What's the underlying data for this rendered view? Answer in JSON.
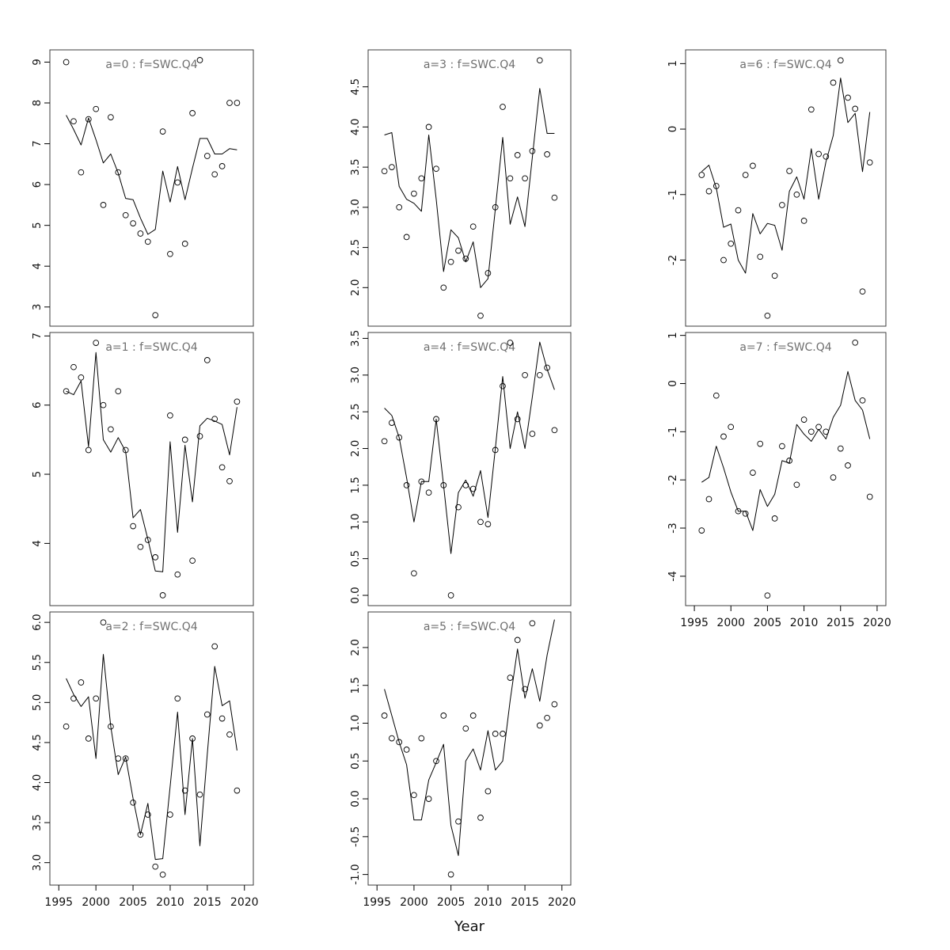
{
  "figure": {
    "xlabel": "Year",
    "background": "#ffffff",
    "line_color": "#000000",
    "point_color": "#000000",
    "title_color": "#6f6f6f",
    "tick_label_color": "#111111",
    "border_color": "#3d3d3d",
    "x_domain": [
      1993.8,
      2021.2
    ],
    "x_ticks": [
      "1995",
      "2000",
      "2005",
      "2010",
      "2015",
      "2020"
    ],
    "years": [
      1996,
      1997,
      1998,
      1999,
      2000,
      2001,
      2002,
      2003,
      2004,
      2005,
      2006,
      2007,
      2008,
      2009,
      2010,
      2011,
      2012,
      2013,
      2014,
      2015,
      2016,
      2017,
      2018,
      2019
    ]
  },
  "chart_data": [
    {
      "type": "scatter",
      "title": "a=0 : f=SWC.Q4",
      "panel": {
        "col": 0,
        "row": 0
      },
      "x_axis": false,
      "y_ticks": [
        "3",
        "4",
        "5",
        "6",
        "7",
        "8",
        "9"
      ],
      "y_domain": [
        2.53,
        9.3
      ],
      "scatter": [
        9.0,
        7.55,
        6.3,
        7.6,
        7.85,
        5.5,
        7.65,
        6.3,
        5.25,
        5.05,
        4.8,
        4.6,
        2.8,
        7.3,
        4.3,
        6.05,
        4.55,
        7.75,
        9.05,
        6.7,
        6.25,
        6.45,
        8.0,
        8.0
      ],
      "line": [
        7.7,
        7.35,
        6.97,
        7.63,
        7.1,
        6.53,
        6.75,
        6.28,
        5.66,
        5.63,
        5.18,
        4.78,
        4.9,
        6.33,
        5.57,
        6.44,
        5.63,
        6.4,
        7.13,
        7.13,
        6.75,
        6.75,
        6.88,
        6.85
      ]
    },
    {
      "type": "scatter",
      "title": "a=1 : f=SWC.Q4",
      "panel": {
        "col": 0,
        "row": 1
      },
      "x_axis": false,
      "y_ticks": [
        "4",
        "5",
        "6",
        "7"
      ],
      "y_domain": [
        3.1,
        7.05
      ],
      "scatter": [
        6.2,
        6.55,
        6.4,
        5.35,
        6.9,
        6.0,
        5.65,
        6.2,
        5.35,
        4.25,
        3.95,
        4.05,
        3.8,
        3.25,
        5.85,
        3.55,
        5.5,
        3.75,
        5.55,
        6.65,
        5.8,
        5.1,
        4.9,
        6.05
      ],
      "line": [
        6.2,
        6.15,
        6.35,
        5.4,
        6.76,
        5.5,
        5.32,
        5.53,
        5.33,
        4.37,
        4.49,
        4.06,
        3.6,
        3.59,
        5.47,
        4.16,
        5.42,
        4.6,
        5.7,
        5.81,
        5.77,
        5.72,
        5.28,
        5.97
      ]
    },
    {
      "type": "scatter",
      "title": "a=2 : f=SWC.Q4",
      "panel": {
        "col": 0,
        "row": 2
      },
      "x_axis": true,
      "y_ticks": [
        "3.0",
        "3.5",
        "4.0",
        "4.5",
        "5.0",
        "5.5",
        "6.0"
      ],
      "y_domain": [
        2.72,
        6.13
      ],
      "scatter": [
        4.7,
        5.05,
        5.25,
        4.55,
        5.05,
        6.0,
        4.7,
        4.3,
        4.3,
        3.75,
        3.35,
        3.6,
        2.95,
        2.85,
        3.6,
        5.05,
        3.9,
        4.55,
        3.85,
        4.85,
        5.7,
        4.8,
        4.6,
        3.9
      ],
      "line": [
        5.3,
        5.1,
        4.95,
        5.07,
        4.3,
        5.6,
        4.7,
        4.1,
        4.32,
        3.8,
        3.35,
        3.74,
        3.04,
        3.05,
        3.95,
        4.88,
        3.6,
        4.55,
        3.21,
        4.35,
        5.45,
        4.96,
        5.02,
        4.4
      ]
    },
    {
      "type": "scatter",
      "title": "a=3 : f=SWC.Q4",
      "panel": {
        "col": 1,
        "row": 0
      },
      "x_axis": false,
      "y_ticks": [
        "2.0",
        "2.5",
        "3.0",
        "3.5",
        "4.0",
        "4.5"
      ],
      "y_domain": [
        1.52,
        4.96
      ],
      "scatter": [
        3.45,
        3.5,
        3.0,
        2.63,
        3.17,
        3.36,
        4.0,
        3.48,
        2.0,
        2.32,
        2.46,
        2.36,
        2.76,
        1.65,
        2.18,
        3.0,
        4.25,
        3.36,
        3.65,
        3.36,
        3.7,
        4.83,
        3.66,
        3.12
      ],
      "line": [
        3.9,
        3.93,
        3.26,
        3.1,
        3.05,
        2.95,
        3.9,
        3.1,
        2.2,
        2.72,
        2.62,
        2.32,
        2.57,
        2.0,
        2.11,
        2.98,
        3.87,
        2.79,
        3.13,
        2.76,
        3.62,
        4.48,
        3.92,
        3.92
      ]
    },
    {
      "type": "scatter",
      "title": "a=4 : f=SWC.Q4",
      "panel": {
        "col": 1,
        "row": 1
      },
      "x_axis": false,
      "y_ticks": [
        "0.0",
        "0.5",
        "1.0",
        "1.5",
        "2.0",
        "2.5",
        "3.0",
        "3.5"
      ],
      "y_domain": [
        -0.14,
        3.58
      ],
      "scatter": [
        2.1,
        2.35,
        2.15,
        1.5,
        0.3,
        1.55,
        1.4,
        2.4,
        1.5,
        0.0,
        1.2,
        1.5,
        1.45,
        1.0,
        0.97,
        1.98,
        2.85,
        3.44,
        2.4,
        3.0,
        2.2,
        3.0,
        3.1,
        2.25
      ],
      "line": [
        2.55,
        2.45,
        2.15,
        1.6,
        1.0,
        1.55,
        1.55,
        2.4,
        1.5,
        0.57,
        1.4,
        1.57,
        1.35,
        1.7,
        1.06,
        2.0,
        2.98,
        2.0,
        2.5,
        2.0,
        2.7,
        3.45,
        3.08,
        2.8
      ]
    },
    {
      "type": "scatter",
      "title": "a=5 : f=SWC.Q4",
      "panel": {
        "col": 1,
        "row": 2
      },
      "x_axis": true,
      "y_ticks": [
        "-1.0",
        "-0.5",
        "0.0",
        "0.5",
        "1.0",
        "1.5",
        "2.0"
      ],
      "y_domain": [
        -1.14,
        2.47
      ],
      "scatter": [
        1.1,
        0.8,
        0.75,
        0.65,
        0.05,
        0.8,
        0.0,
        0.5,
        1.1,
        -1.0,
        -0.3,
        0.93,
        1.1,
        -0.25,
        0.1,
        0.86,
        0.86,
        1.6,
        2.1,
        1.45,
        2.32,
        0.97,
        1.07,
        1.25
      ],
      "line": [
        1.45,
        1.1,
        0.75,
        0.45,
        -0.28,
        -0.28,
        0.25,
        0.48,
        0.72,
        -0.35,
        -0.75,
        0.5,
        0.66,
        0.38,
        0.9,
        0.38,
        0.5,
        1.3,
        1.98,
        1.33,
        1.72,
        1.29,
        1.9,
        2.37
      ]
    },
    {
      "type": "scatter",
      "title": "a=6 : f=SWC.Q4",
      "panel": {
        "col": 2,
        "row": 0
      },
      "x_axis": false,
      "y_ticks": [
        "-2",
        "-1",
        "0",
        "1"
      ],
      "y_domain": [
        -3.01,
        1.21
      ],
      "scatter": [
        -0.7,
        -0.95,
        -0.87,
        -2.0,
        -1.75,
        -1.24,
        -0.7,
        -0.56,
        -1.95,
        -2.85,
        -2.24,
        -1.16,
        -0.64,
        -1.0,
        -1.4,
        0.3,
        -0.38,
        -0.42,
        0.71,
        1.05,
        0.48,
        0.31,
        -2.48,
        -0.51
      ],
      "line": [
        -0.65,
        -0.55,
        -0.9,
        -1.5,
        -1.45,
        -2.0,
        -2.2,
        -1.29,
        -1.6,
        -1.44,
        -1.47,
        -1.85,
        -0.95,
        -0.73,
        -1.07,
        -0.3,
        -1.07,
        -0.5,
        -0.1,
        0.78,
        0.1,
        0.24,
        -0.65,
        0.26
      ]
    },
    {
      "type": "scatter",
      "title": "a=7 : f=SWC.Q4",
      "panel": {
        "col": 2,
        "row": 1
      },
      "x_axis": true,
      "y_ticks": [
        "-4",
        "-3",
        "-2",
        "-1",
        "0",
        "1"
      ],
      "y_domain": [
        -4.61,
        1.06
      ],
      "scatter": [
        -3.05,
        -2.4,
        -0.25,
        -1.1,
        -0.9,
        -2.65,
        -2.7,
        -1.85,
        -1.25,
        -4.4,
        -2.8,
        -1.3,
        -1.6,
        -2.1,
        -0.75,
        -1.0,
        -0.9,
        -1.0,
        -1.95,
        -1.35,
        -1.7,
        0.85,
        -0.35,
        -2.35
      ],
      "line": [
        -2.05,
        -1.95,
        -1.3,
        -1.75,
        -2.25,
        -2.65,
        -2.65,
        -3.05,
        -2.2,
        -2.55,
        -2.3,
        -1.6,
        -1.65,
        -0.85,
        -1.05,
        -1.2,
        -0.95,
        -1.15,
        -0.7,
        -0.45,
        0.25,
        -0.35,
        -0.55,
        -1.15
      ]
    }
  ]
}
